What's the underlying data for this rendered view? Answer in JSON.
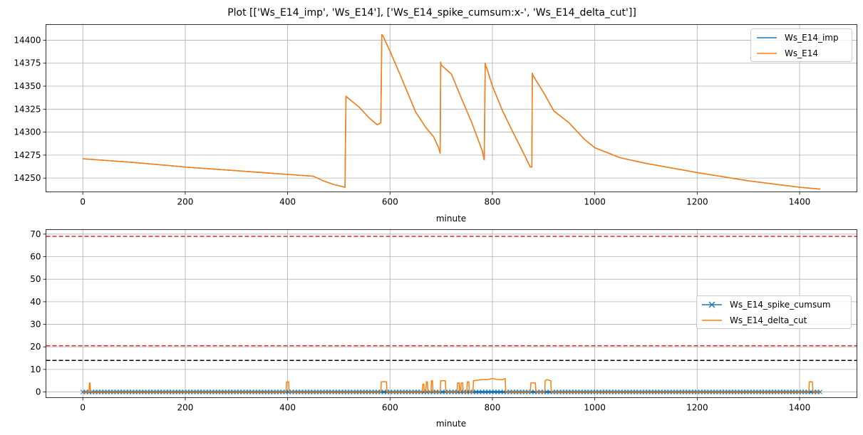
{
  "figure": {
    "title": "Plot [['Ws_E14_imp', 'Ws_E14'], ['Ws_E14_spike_cumsum:x-', 'Ws_E14_delta_cut']]"
  },
  "colors": {
    "blue": "#1f77b4",
    "orange": "#ff7f0e",
    "red": "#d62728",
    "black": "#000000",
    "grid": "#b0b0b0"
  },
  "chart_data": [
    {
      "type": "line",
      "xlabel": "minute",
      "ylabel": "",
      "xlim": [
        -72,
        1512
      ],
      "ylim": [
        14235,
        14417
      ],
      "xticks": [
        0,
        200,
        400,
        600,
        800,
        1000,
        1200,
        1400
      ],
      "yticks": [
        14250,
        14275,
        14300,
        14325,
        14350,
        14375,
        14400
      ],
      "grid": true,
      "legend_position": "upper right",
      "series": [
        {
          "name": "Ws_E14_imp",
          "color": "#1f77b4",
          "x": [
            0,
            100,
            200,
            300,
            400,
            450,
            470,
            490,
            512,
            514,
            516,
            540,
            560,
            575,
            582,
            584,
            586,
            600,
            620,
            650,
            670,
            685,
            695,
            698,
            699,
            700,
            720,
            740,
            760,
            780,
            784,
            786,
            787,
            790,
            800,
            820,
            840,
            860,
            874,
            877,
            878,
            880,
            900,
            920,
            950,
            980,
            1000,
            1050,
            1100,
            1200,
            1300,
            1400,
            1440
          ],
          "y": [
            14271,
            14267,
            14262,
            14258,
            14254,
            14252,
            14247,
            14243,
            14240,
            14339,
            14338,
            14327,
            14315,
            14308,
            14310,
            14406,
            14405,
            14388,
            14362,
            14322,
            14305,
            14295,
            14283,
            14277,
            14376,
            14373,
            14363,
            14336,
            14310,
            14280,
            14270,
            14375,
            14372,
            14368,
            14350,
            14323,
            14300,
            14278,
            14262,
            14262,
            14364,
            14361,
            14343,
            14323,
            14310,
            14292,
            14283,
            14272,
            14266,
            14256,
            14247,
            14240,
            14238
          ]
        },
        {
          "name": "Ws_E14",
          "color": "#ff7f0e",
          "x": [
            0,
            100,
            200,
            300,
            400,
            450,
            470,
            490,
            512,
            514,
            516,
            540,
            560,
            575,
            582,
            584,
            586,
            600,
            620,
            650,
            670,
            685,
            695,
            698,
            699,
            700,
            720,
            740,
            760,
            780,
            784,
            786,
            787,
            790,
            800,
            820,
            840,
            860,
            874,
            877,
            878,
            880,
            900,
            920,
            950,
            980,
            1000,
            1050,
            1100,
            1200,
            1300,
            1400,
            1440
          ],
          "y": [
            14271,
            14267,
            14262,
            14258,
            14254,
            14252,
            14247,
            14243,
            14240,
            14339,
            14338,
            14327,
            14315,
            14308,
            14310,
            14406,
            14405,
            14388,
            14362,
            14322,
            14305,
            14295,
            14283,
            14277,
            14376,
            14373,
            14363,
            14336,
            14310,
            14280,
            14270,
            14375,
            14372,
            14368,
            14350,
            14323,
            14300,
            14278,
            14262,
            14262,
            14364,
            14361,
            14343,
            14323,
            14310,
            14292,
            14283,
            14272,
            14266,
            14256,
            14247,
            14240,
            14238
          ]
        }
      ]
    },
    {
      "type": "line",
      "xlabel": "minute",
      "ylabel": "",
      "xlim": [
        -72,
        1512
      ],
      "ylim": [
        -2.5,
        72
      ],
      "xticks": [
        0,
        200,
        400,
        600,
        800,
        1000,
        1200,
        1400
      ],
      "yticks": [
        0,
        10,
        20,
        30,
        40,
        50,
        60,
        70
      ],
      "grid": true,
      "legend_position": "center right",
      "hlines": [
        {
          "y": 69,
          "color": "#d62728",
          "style": "dashed"
        },
        {
          "y": 20.5,
          "color": "#d62728",
          "style": "dashed"
        },
        {
          "y": 14,
          "color": "#000000",
          "style": "dashed"
        }
      ],
      "series": [
        {
          "name": "Ws_E14_spike_cumsum",
          "color": "#1f77b4",
          "marker": "x",
          "band": [
            -0.5,
            0.5
          ],
          "x_range": [
            0,
            1440
          ],
          "note_values": [
            0
          ]
        },
        {
          "name": "Ws_E14_delta_cut",
          "color": "#ff7f0e",
          "x": [
            0,
            12,
            13,
            14,
            15,
            397,
            398,
            402,
            403,
            582,
            583,
            593,
            594,
            663,
            664,
            666,
            667,
            670,
            671,
            673,
            674,
            680,
            681,
            683,
            684,
            698,
            699,
            708,
            709,
            731,
            732,
            735,
            736,
            738,
            739,
            742,
            743,
            750,
            751,
            754,
            755,
            762,
            763,
            780,
            790,
            800,
            810,
            820,
            825,
            826,
            874,
            875,
            884,
            885,
            902,
            903,
            906,
            914,
            915,
            1418,
            1419,
            1425,
            1426,
            1440
          ],
          "y": [
            0,
            0,
            4,
            4,
            0,
            0,
            4.5,
            4.5,
            0,
            0,
            4.5,
            4.5,
            0,
            0,
            3.5,
            3.5,
            0,
            0,
            4.5,
            4.5,
            0,
            0,
            5,
            5,
            0,
            0,
            5,
            5,
            0,
            0,
            4,
            4,
            0,
            0,
            4,
            4,
            0,
            0,
            4.5,
            4.5,
            0,
            0,
            5,
            5.5,
            5.5,
            6,
            5.5,
            5.5,
            6,
            0,
            0,
            4,
            4,
            0,
            0,
            5,
            5.5,
            5,
            0,
            0,
            4.5,
            4.5,
            0,
            0
          ]
        }
      ]
    }
  ]
}
